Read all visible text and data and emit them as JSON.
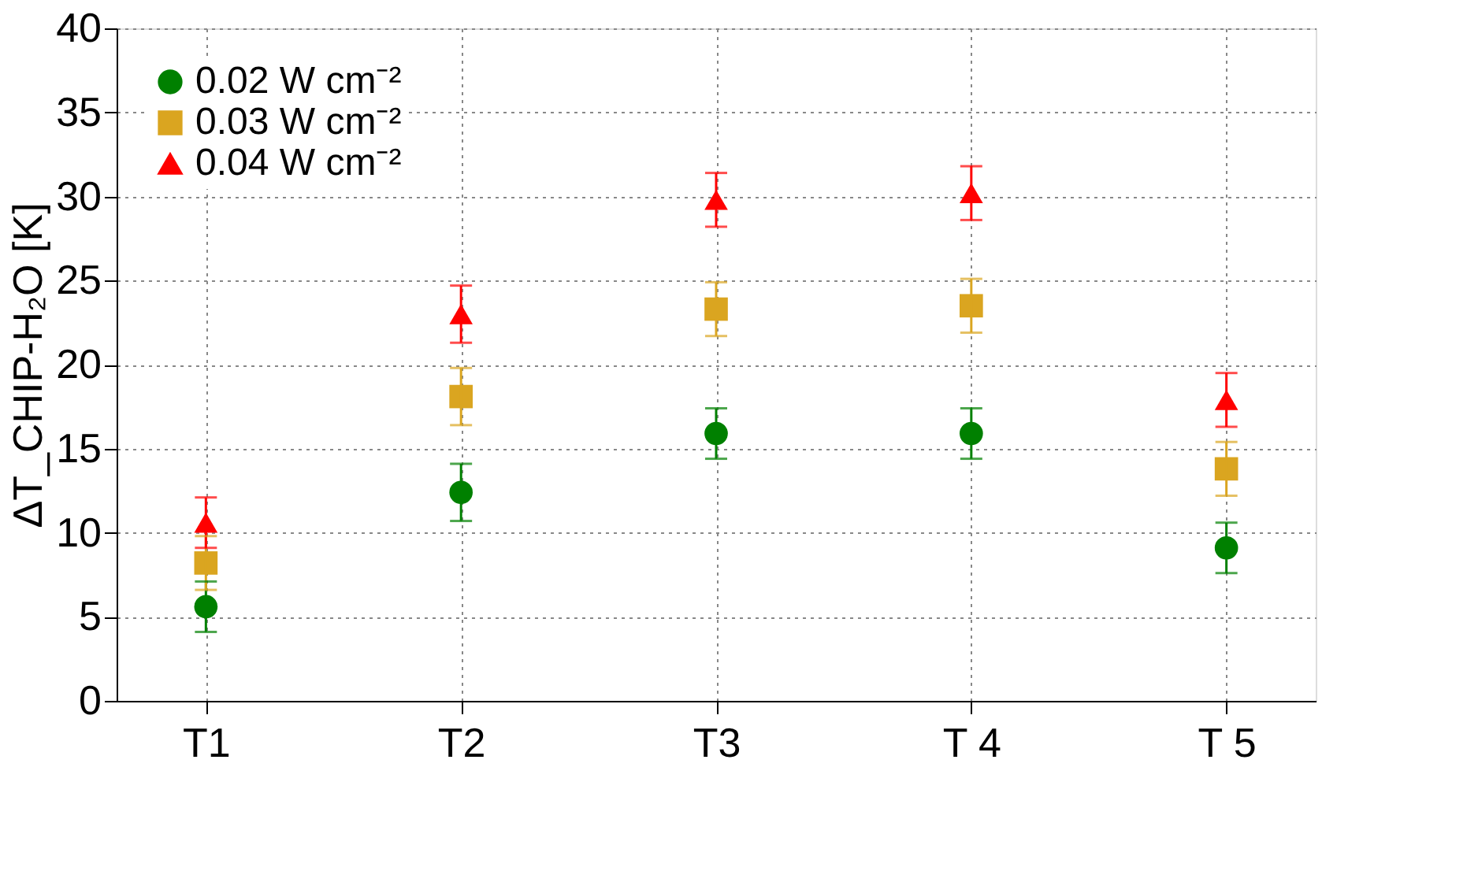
{
  "chart_data": {
    "type": "scatter",
    "ylabel": "ΔT_CHIP-H₂O [K]",
    "categories": [
      "T1",
      "T2",
      "T3",
      "T 4",
      "T 5"
    ],
    "series": [
      {
        "name": "0.02 W cm⁻²",
        "color": "#008000",
        "marker": "circle",
        "values": [
          5.6,
          12.4,
          15.9,
          15.9,
          9.1
        ],
        "errors": [
          1.5,
          1.7,
          1.5,
          1.5,
          1.5
        ]
      },
      {
        "name": "0.03 W cm⁻²",
        "color": "#daa520",
        "marker": "square",
        "values": [
          8.2,
          18.1,
          23.3,
          23.5,
          13.8
        ],
        "errors": [
          1.6,
          1.7,
          1.6,
          1.6,
          1.6
        ]
      },
      {
        "name": "0.04 W cm⁻²",
        "color": "#ff0000",
        "marker": "triangle",
        "values": [
          10.6,
          23.0,
          29.8,
          30.2,
          17.9
        ],
        "errors": [
          1.5,
          1.7,
          1.6,
          1.6,
          1.6
        ]
      }
    ],
    "ylim": [
      0,
      40
    ],
    "yticks": [
      0,
      5,
      10,
      15,
      20,
      25,
      30,
      35,
      40
    ],
    "grid": true,
    "legend": "top left"
  }
}
